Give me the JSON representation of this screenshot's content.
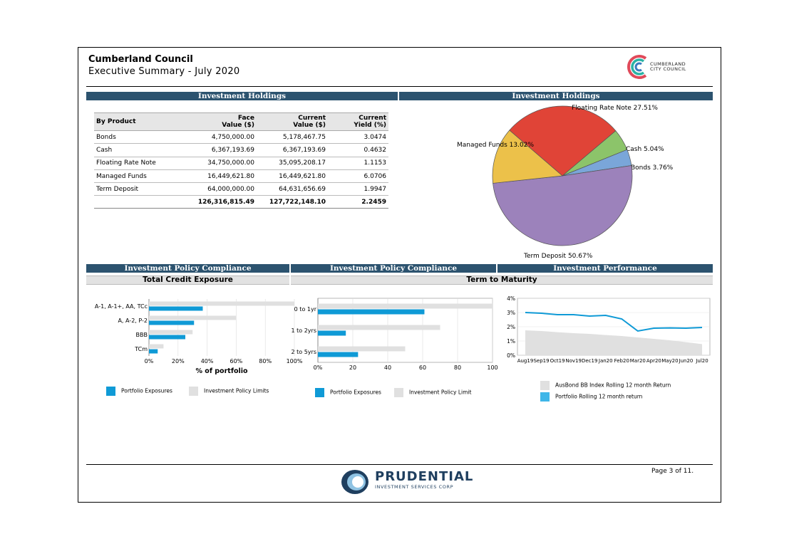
{
  "header": {
    "title": "Cumberland Council",
    "subtitle": "Executive Summary - July 2020",
    "logo_text_line1": "CUMBERLAND",
    "logo_text_line2": "CITY COUNCIL"
  },
  "bands": {
    "holdings_table": "Investment Holdings",
    "holdings_pie": "Investment Holdings",
    "compliance_credit": "Investment Policy Compliance",
    "compliance_maturity": "Investment Policy Compliance",
    "performance": "Investment Performance",
    "credit_sub": "Total Credit Exposure",
    "maturity_sub": "Term to Maturity"
  },
  "holdings": {
    "headers": {
      "product": "By Product",
      "face_1": "Face",
      "face_2": "Value ($)",
      "current_1": "Current",
      "current_2": "Value ($)",
      "yield_1": "Current",
      "yield_2": "Yield (%)"
    },
    "rows": [
      {
        "product": "Bonds",
        "face": "4,750,000.00",
        "current": "5,178,467.75",
        "yield": "3.0474"
      },
      {
        "product": "Cash",
        "face": "6,367,193.69",
        "current": "6,367,193.69",
        "yield": "0.4632"
      },
      {
        "product": "Floating Rate Note",
        "face": "34,750,000.00",
        "current": "35,095,208.17",
        "yield": "1.1153"
      },
      {
        "product": "Managed Funds",
        "face": "16,449,621.80",
        "current": "16,449,621.80",
        "yield": "6.0706"
      },
      {
        "product": "Term Deposit",
        "face": "64,000,000.00",
        "current": "64,631,656.69",
        "yield": "1.9947"
      }
    ],
    "total": {
      "face": "126,316,815.49",
      "current": "127,722,148.10",
      "yield": "2.2459"
    }
  },
  "colors": {
    "band": "#2c536f",
    "portfolio": "#0f9ad6",
    "limit": "#e0e0e0",
    "bonds": "#7aa6d9",
    "cash": "#8cc46a",
    "frn": "#e04437",
    "managed": "#ecc14a",
    "td": "#9c82bb"
  },
  "chart_data": [
    {
      "type": "pie",
      "title": "Investment Holdings",
      "labels": [
        "Floating Rate Note 27.51%",
        "Cash 5.04%",
        "Bonds 3.76%",
        "Term Deposit 50.67%",
        "Managed Funds 13.02%"
      ],
      "values": [
        27.51,
        5.04,
        3.76,
        50.67,
        13.02
      ]
    },
    {
      "type": "bar",
      "title": "Total Credit Exposure",
      "xlabel": "% of portfolio",
      "categories": [
        "A-1, A-1+, AA, TCc",
        "A, A-2, P-2",
        "BBB",
        "TCm"
      ],
      "xticks": [
        "0%",
        "20%",
        "40%",
        "60%",
        "80%",
        "100%"
      ],
      "xlim": [
        0,
        100
      ],
      "series": [
        {
          "name": "Portfolio Exposures",
          "values": [
            37,
            31,
            25,
            6
          ]
        },
        {
          "name": "Investment Policy Limits",
          "values": [
            100,
            60,
            30,
            10
          ]
        }
      ],
      "legend": [
        "Portfolio Exposures",
        "Investment Policy Limits"
      ]
    },
    {
      "type": "bar",
      "title": "Term to Maturity",
      "categories": [
        "0 to 1yr",
        "1 to 2yrs",
        "2 to 5yrs"
      ],
      "xticks": [
        "0%",
        "20",
        "40",
        "60",
        "80",
        "100"
      ],
      "xlim": [
        0,
        100
      ],
      "series": [
        {
          "name": "Portfolio Exposures",
          "values": [
            61,
            16,
            23
          ]
        },
        {
          "name": "Investment Policy Limit",
          "values": [
            100,
            70,
            50
          ]
        }
      ],
      "legend": [
        "Portfolio Exposures",
        "Investment Policy Limit"
      ]
    },
    {
      "type": "area",
      "title": "Investment Performance",
      "categories": [
        "Aug19",
        "Sep19",
        "Oct19",
        "Nov19",
        "Dec19",
        "Jan20",
        "Feb20",
        "Mar20",
        "Apr20",
        "May20",
        "Jun20",
        "Jul20"
      ],
      "yticks": [
        "4%",
        "3%",
        "2%",
        "1%",
        "0%"
      ],
      "ylim": [
        0,
        4
      ],
      "series": [
        {
          "name": "AusBond BB Index Rolling 12 month Return",
          "values": [
            1.75,
            1.7,
            1.62,
            1.55,
            1.5,
            1.42,
            1.35,
            1.25,
            1.15,
            1.05,
            0.92,
            0.78
          ]
        },
        {
          "name": "Portfolio Rolling 12 month return",
          "values": [
            3.0,
            2.95,
            2.85,
            2.85,
            2.75,
            2.8,
            2.55,
            1.7,
            1.9,
            1.92,
            1.9,
            1.95
          ]
        }
      ],
      "legend": [
        "AusBond BB Index Rolling 12 month Return",
        "Portfolio Rolling 12 month return"
      ]
    }
  ],
  "footer": {
    "page": "Page 3 of 11.",
    "brand": "PRUDENTIAL",
    "brand_sub": "INVESTMENT SERVICES CORP"
  }
}
